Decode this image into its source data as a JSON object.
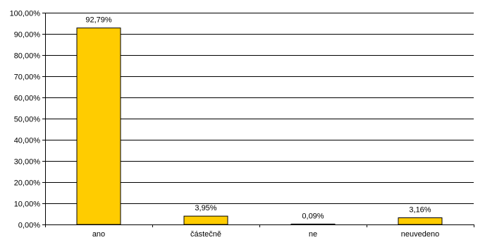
{
  "chart_data": {
    "type": "bar",
    "categories": [
      "ano",
      "částečně",
      "ne",
      "neuvedeno"
    ],
    "values": [
      92.79,
      3.95,
      0.09,
      3.16
    ],
    "value_labels": [
      "92,79%",
      "3,95%",
      "0,09%",
      "3,16%"
    ],
    "ylim": [
      0,
      100
    ],
    "yticks": [
      0,
      10,
      20,
      30,
      40,
      50,
      60,
      70,
      80,
      90,
      100
    ],
    "ytick_labels": [
      "0,00%",
      "10,00%",
      "20,00%",
      "30,00%",
      "40,00%",
      "50,00%",
      "60,00%",
      "70,00%",
      "80,00%",
      "90,00%",
      "100,00%"
    ],
    "grid": true,
    "bar_color": "#FFCC00",
    "bar_edge_color": "#000000",
    "grid_color": "#000000",
    "title": "",
    "xlabel": "",
    "ylabel": ""
  }
}
